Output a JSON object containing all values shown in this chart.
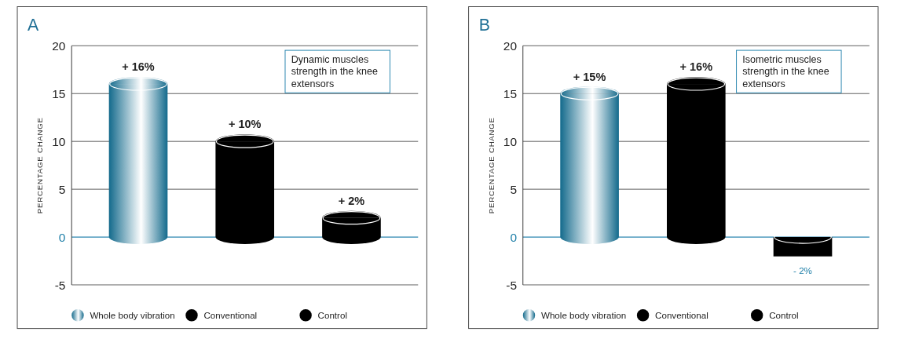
{
  "chart_data": [
    {
      "type": "bar",
      "title": "A",
      "ylabel": "PERCENTAGE CHANGE",
      "categories": [
        null,
        null,
        null
      ],
      "ylim": [
        -5,
        20
      ],
      "yticks": [
        -5,
        0,
        5,
        10,
        15,
        20
      ],
      "grid": "y",
      "ref_lines": [
        {
          "axis": "y",
          "value": 0,
          "color": "#2a86b0"
        }
      ],
      "legend": "bottom",
      "tick_labels": "y",
      "annotations": [
        "Dynamic muscles strength in the knee extensors"
      ],
      "series": [
        {
          "name": "Whole body vibration",
          "color": "#136a8c",
          "values": [
            16,
            null,
            null
          ],
          "value_labels": [
            "+ 16%",
            null,
            null
          ]
        },
        {
          "name": "Conventional",
          "color": "#000000",
          "values": [
            null,
            10,
            null
          ],
          "value_labels": [
            null,
            "+ 10%",
            null
          ]
        },
        {
          "name": "Control",
          "color": "#000000",
          "values": [
            null,
            null,
            2
          ],
          "value_labels": [
            null,
            null,
            "+ 2%"
          ]
        }
      ]
    },
    {
      "type": "bar",
      "title": "B",
      "ylabel": "PERCENTAGE CHANGE",
      "categories": [
        null,
        null,
        null
      ],
      "ylim": [
        -5,
        20
      ],
      "yticks": [
        -5,
        0,
        5,
        10,
        15,
        20
      ],
      "grid": "y",
      "ref_lines": [
        {
          "axis": "y",
          "value": 0,
          "color": "#2a86b0"
        }
      ],
      "legend": "bottom",
      "tick_labels": "y",
      "annotations": [
        "Isometric muscles strength in the knee extensors"
      ],
      "series": [
        {
          "name": "Whole body vibration",
          "color": "#136a8c",
          "values": [
            15,
            null,
            null
          ],
          "value_labels": [
            "+ 15%",
            null,
            null
          ]
        },
        {
          "name": "Conventional",
          "color": "#000000",
          "values": [
            null,
            16,
            null
          ],
          "value_labels": [
            null,
            "+ 16%",
            null
          ]
        },
        {
          "name": "Control",
          "color": "#000000",
          "values": [
            null,
            null,
            -2
          ],
          "value_labels": [
            null,
            null,
            "- 2%"
          ]
        }
      ]
    }
  ]
}
